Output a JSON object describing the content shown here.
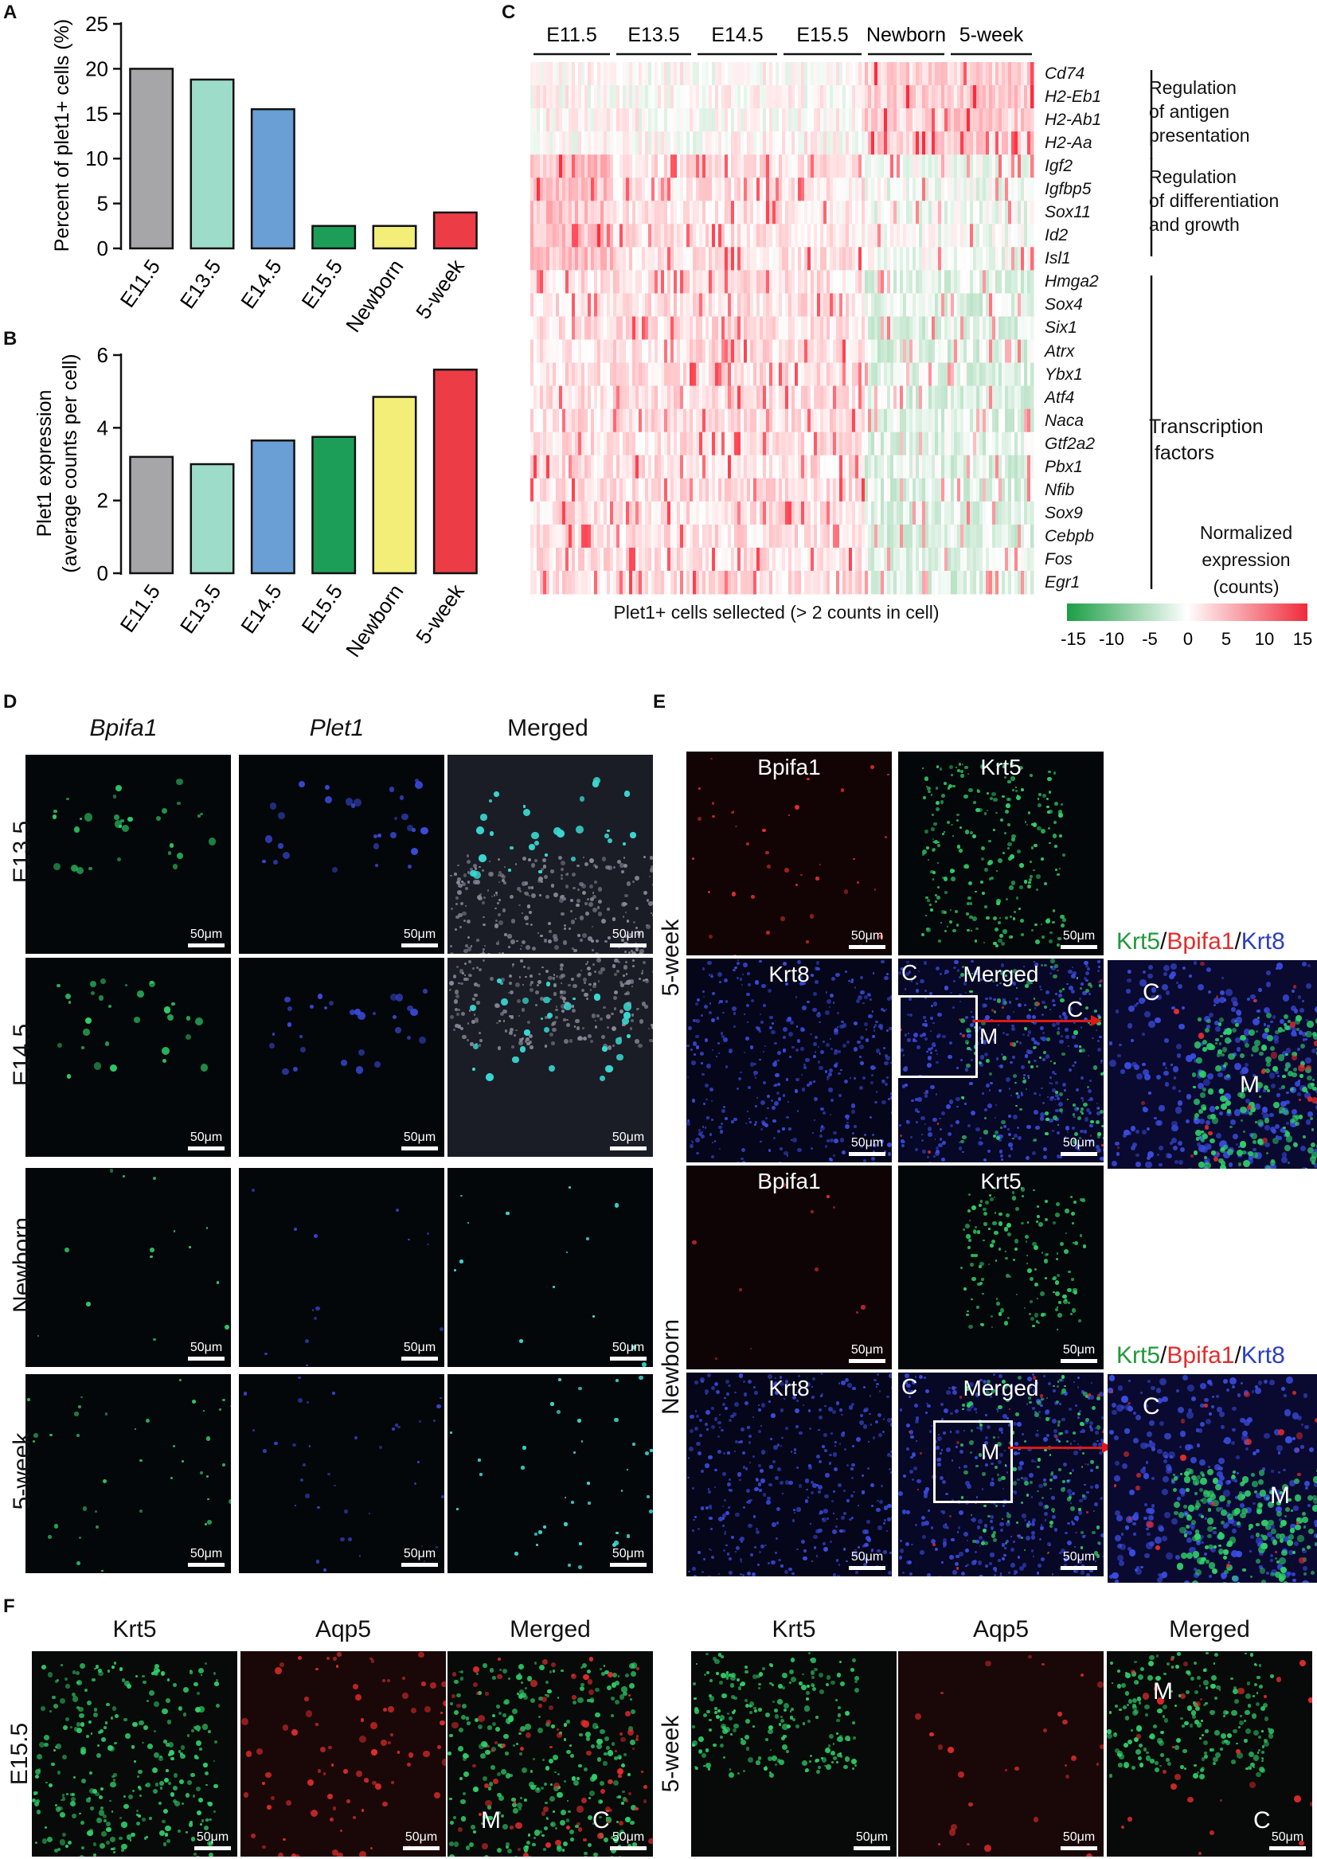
{
  "panels": {
    "a": "A",
    "b": "B",
    "c": "C",
    "d": "D",
    "e": "E",
    "f": "F"
  },
  "chart_data": [
    {
      "type": "bar",
      "ylabel": "Percent of plet1+ cells (%)",
      "categories": [
        "E11.5",
        "E13.5",
        "E14.5",
        "E15.5",
        "Newborn",
        "5-week"
      ],
      "values": [
        20.0,
        18.8,
        15.5,
        2.5,
        2.5,
        4.0
      ],
      "colors": [
        "#a6a6a8",
        "#9ddcc8",
        "#6a9fd6",
        "#1d9e58",
        "#f2ee78",
        "#ec3c45"
      ],
      "ylim": [
        0,
        25
      ],
      "yticks": [
        0,
        5,
        10,
        15,
        20,
        25
      ]
    },
    {
      "type": "bar",
      "ylabel": "Plet1 expression",
      "ylabel2": "(average counts per cell)",
      "categories": [
        "E11.5",
        "E13.5",
        "E14.5",
        "E15.5",
        "Newborn",
        "5-week"
      ],
      "values": [
        3.2,
        3.0,
        3.65,
        3.75,
        4.85,
        5.6
      ],
      "colors": [
        "#a6a6a8",
        "#9ddcc8",
        "#6a9fd6",
        "#1d9e58",
        "#f2ee78",
        "#ec3c45"
      ],
      "ylim": [
        0,
        6
      ],
      "yticks": [
        0,
        2,
        4,
        6
      ]
    },
    {
      "type": "heatmap",
      "x_groups": [
        "E11.5",
        "E13.5",
        "E14.5",
        "E15.5",
        "Newborn",
        "5-week"
      ],
      "genes": [
        "Cd74",
        "H2-Eb1",
        "H2-Ab1",
        "H2-Aa",
        "Igf2",
        "Igfbp5",
        "Sox11",
        "Id2",
        "Isl1",
        "Hmga2",
        "Sox4",
        "Six1",
        "Atrx",
        "Ybx1",
        "Atf4",
        "Naca",
        "Gtf2a2",
        "Pbx1",
        "Nfib",
        "Sox9",
        "Cebpb",
        "Fos",
        "Egr1"
      ],
      "categories": [
        {
          "lines": [
            "Regulation",
            "of antigen",
            "presentation"
          ]
        },
        {
          "lines": [
            "Regulation",
            "of differentiation",
            "and growth"
          ]
        },
        {
          "lines": [
            "Transcription",
            " factors"
          ]
        }
      ],
      "xlabel": "Plet1+ cells sellected (> 2 counts in cell)",
      "legend_title": [
        "Normalized",
        "expression",
        "(counts)"
      ],
      "legend_ticks": [
        "-15",
        "-10",
        "-5",
        "0",
        "5",
        "10",
        "15"
      ],
      "color_low": "#1a9e45",
      "color_mid": "#ffffff",
      "color_high": "#ee2b3b"
    }
  ],
  "panel_d": {
    "columns": [
      "Bpifa1",
      "Plet1",
      "Merged"
    ],
    "rows": [
      "E13.5",
      "E14.5",
      "Newborn",
      "5-week"
    ],
    "scale": "50μm"
  },
  "panel_e": {
    "top_labels": [
      "Bpifa1",
      "Krt5"
    ],
    "bottom_labels": [
      "Krt8",
      "Merged"
    ],
    "rows": [
      "5-week",
      "Newborn"
    ],
    "inset_title": {
      "krt5": "Krt5",
      "slash1": "/",
      "bpifa1": "Bpifa1",
      "slash2": "/",
      "krt8": "Krt8"
    },
    "c": "C",
    "m": "M",
    "scale": "50μm"
  },
  "panel_f": {
    "left_columns": [
      "Krt5",
      "Aqp5",
      "Merged"
    ],
    "right_columns": [
      "Krt5",
      "Aqp5",
      "Merged"
    ],
    "left_row": "E15.5",
    "right_row": "5-week",
    "c": "C",
    "m": "M",
    "scale": "50μm"
  },
  "colors": {
    "green": "#2fd06a",
    "blue": "#3a4ce0",
    "red": "#e32c2c",
    "cyan": "#39d6d0"
  }
}
